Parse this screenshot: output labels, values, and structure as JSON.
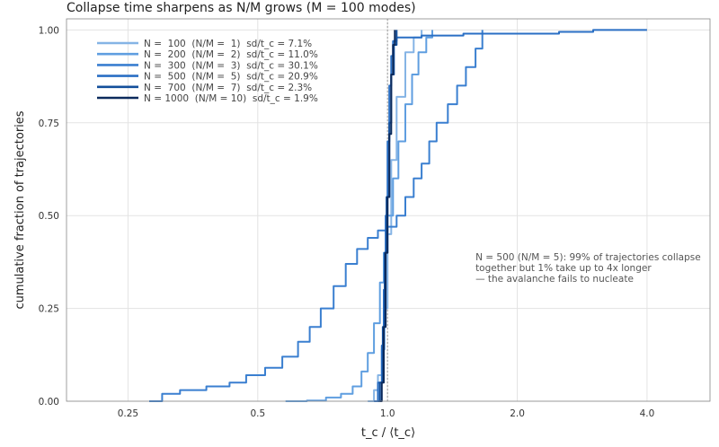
{
  "chart_data": {
    "type": "line",
    "title": "Collapse time sharpens as N/M grows (M = 100 modes)",
    "xlabel": "t_c / ⟨t_c⟩",
    "ylabel": "cumulative fraction of trajectories",
    "xscale": "log",
    "xlim": [
      0.18,
      5.6
    ],
    "ylim": [
      0,
      1.03
    ],
    "xticks": [
      {
        "value": 0.25,
        "label": "0.25"
      },
      {
        "value": 0.5,
        "label": "0.5"
      },
      {
        "value": 1.0,
        "label": "1.0"
      },
      {
        "value": 2.0,
        "label": "2.0"
      },
      {
        "value": 4.0,
        "label": "4.0"
      }
    ],
    "yticks": [
      {
        "value": 0.0,
        "label": "0.00"
      },
      {
        "value": 0.25,
        "label": "0.25"
      },
      {
        "value": 0.5,
        "label": "0.50"
      },
      {
        "value": 0.75,
        "label": "0.75"
      },
      {
        "value": 1.0,
        "label": "1.00"
      }
    ],
    "grid": true,
    "legend_position": "top-left",
    "reference_line_x": 1.0,
    "series": [
      {
        "name": "N =  100  (N/M =  1)  sd/t_c = 7.1%",
        "color": "#85b4e5",
        "points": [
          [
            0.9,
            0.0
          ],
          [
            0.93,
            0.03
          ],
          [
            0.95,
            0.07
          ],
          [
            0.97,
            0.14
          ],
          [
            0.985,
            0.25
          ],
          [
            1.0,
            0.45
          ],
          [
            1.02,
            0.65
          ],
          [
            1.05,
            0.82
          ],
          [
            1.1,
            0.94
          ],
          [
            1.15,
            0.98
          ],
          [
            1.2,
            1.0
          ]
        ]
      },
      {
        "name": "N =  200  (N/M =  2)  sd/t_c = 11.0%",
        "color": "#5f9ee0",
        "points": [
          [
            0.58,
            0.0
          ],
          [
            0.65,
            0.002
          ],
          [
            0.72,
            0.01
          ],
          [
            0.78,
            0.02
          ],
          [
            0.83,
            0.04
          ],
          [
            0.87,
            0.08
          ],
          [
            0.9,
            0.13
          ],
          [
            0.93,
            0.21
          ],
          [
            0.96,
            0.32
          ],
          [
            0.98,
            0.4
          ],
          [
            1.0,
            0.5
          ],
          [
            1.03,
            0.6
          ],
          [
            1.06,
            0.7
          ],
          [
            1.1,
            0.8
          ],
          [
            1.14,
            0.88
          ],
          [
            1.18,
            0.94
          ],
          [
            1.23,
            0.98
          ],
          [
            1.27,
            1.0
          ]
        ]
      },
      {
        "name": "N =  300  (N/M =  3)  sd/t_c = 30.1%",
        "color": "#3a7fd0",
        "points": [
          [
            0.28,
            0.0
          ],
          [
            0.3,
            0.02
          ],
          [
            0.33,
            0.03
          ],
          [
            0.38,
            0.04
          ],
          [
            0.43,
            0.05
          ],
          [
            0.47,
            0.07
          ],
          [
            0.52,
            0.09
          ],
          [
            0.57,
            0.12
          ],
          [
            0.62,
            0.16
          ],
          [
            0.66,
            0.2
          ],
          [
            0.7,
            0.25
          ],
          [
            0.75,
            0.31
          ],
          [
            0.8,
            0.37
          ],
          [
            0.85,
            0.41
          ],
          [
            0.9,
            0.44
          ],
          [
            0.95,
            0.46
          ],
          [
            1.0,
            0.47
          ],
          [
            1.05,
            0.5
          ],
          [
            1.1,
            0.55
          ],
          [
            1.15,
            0.6
          ],
          [
            1.2,
            0.64
          ],
          [
            1.25,
            0.7
          ],
          [
            1.3,
            0.75
          ],
          [
            1.38,
            0.8
          ],
          [
            1.45,
            0.85
          ],
          [
            1.52,
            0.9
          ],
          [
            1.6,
            0.95
          ],
          [
            1.66,
            1.0
          ]
        ]
      },
      {
        "name": "N =  500  (N/M =  5)  sd/t_c = 20.9%",
        "color": "#2a6fc4",
        "points": [
          [
            0.93,
            0.0
          ],
          [
            0.95,
            0.05
          ],
          [
            0.97,
            0.15
          ],
          [
            0.98,
            0.3
          ],
          [
            0.99,
            0.5
          ],
          [
            1.0,
            0.7
          ],
          [
            1.01,
            0.85
          ],
          [
            1.02,
            0.93
          ],
          [
            1.03,
            0.97
          ],
          [
            1.05,
            0.98
          ],
          [
            1.2,
            0.985
          ],
          [
            1.5,
            0.99
          ],
          [
            1.8,
            0.99
          ],
          [
            2.5,
            0.995
          ],
          [
            3.0,
            1.0
          ],
          [
            4.0,
            1.0
          ]
        ]
      },
      {
        "name": "N =  700  (N/M =  7)  sd/t_c = 2.3%",
        "color": "#134f9b",
        "points": [
          [
            0.95,
            0.0
          ],
          [
            0.96,
            0.05
          ],
          [
            0.975,
            0.2
          ],
          [
            0.985,
            0.4
          ],
          [
            0.995,
            0.55
          ],
          [
            1.01,
            0.75
          ],
          [
            1.02,
            0.88
          ],
          [
            1.035,
            0.96
          ],
          [
            1.05,
            1.0
          ]
        ]
      },
      {
        "name": "N = 1000  (N/M = 10)  sd/t_c = 1.9%",
        "color": "#0b2a5c",
        "points": [
          [
            0.96,
            0.0
          ],
          [
            0.97,
            0.05
          ],
          [
            0.98,
            0.2
          ],
          [
            0.99,
            0.4
          ],
          [
            1.0,
            0.55
          ],
          [
            1.01,
            0.72
          ],
          [
            1.02,
            0.88
          ],
          [
            1.03,
            0.96
          ],
          [
            1.04,
            1.0
          ]
        ]
      }
    ],
    "annotation": {
      "lines": [
        "N = 500 (N/M = 5): 99% of trajectories collapse",
        "together but 1% take up to 4x longer",
        "— the avalanche fails to nucleate"
      ],
      "x": 1.6,
      "y": 0.38
    }
  }
}
